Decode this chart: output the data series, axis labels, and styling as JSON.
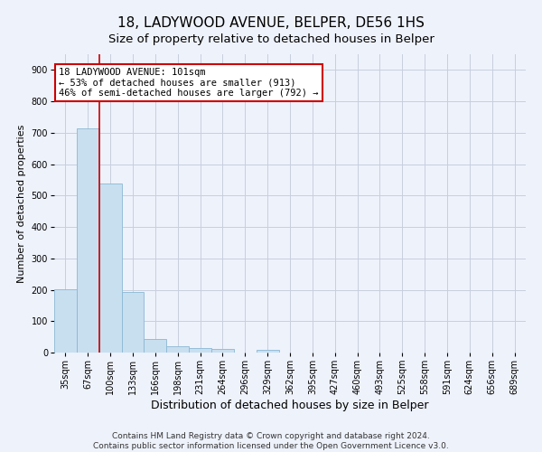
{
  "title": "18, LADYWOOD AVENUE, BELPER, DE56 1HS",
  "subtitle": "Size of property relative to detached houses in Belper",
  "xlabel": "Distribution of detached houses by size in Belper",
  "ylabel": "Number of detached properties",
  "bin_labels": [
    "35sqm",
    "67sqm",
    "100sqm",
    "133sqm",
    "166sqm",
    "198sqm",
    "231sqm",
    "264sqm",
    "296sqm",
    "329sqm",
    "362sqm",
    "395sqm",
    "427sqm",
    "460sqm",
    "493sqm",
    "525sqm",
    "558sqm",
    "591sqm",
    "624sqm",
    "656sqm",
    "689sqm"
  ],
  "bin_values": [
    202,
    714,
    537,
    193,
    42,
    20,
    14,
    12,
    0,
    9,
    0,
    0,
    0,
    0,
    0,
    0,
    0,
    0,
    0,
    0,
    0
  ],
  "bar_color": "#c8dff0",
  "bar_edge_color": "#8ab8d4",
  "vline_x_index": 2,
  "vline_color": "#cc0000",
  "annotation_text": "18 LADYWOOD AVENUE: 101sqm\n← 53% of detached houses are smaller (913)\n46% of semi-detached houses are larger (792) →",
  "annotation_box_color": "#ffffff",
  "annotation_box_edge": "#cc0000",
  "ylim": [
    0,
    950
  ],
  "yticks": [
    0,
    100,
    200,
    300,
    400,
    500,
    600,
    700,
    800,
    900
  ],
  "footer": "Contains HM Land Registry data © Crown copyright and database right 2024.\nContains public sector information licensed under the Open Government Licence v3.0.",
  "background_color": "#eef2fb",
  "grid_color": "#c8cede",
  "title_fontsize": 11,
  "subtitle_fontsize": 9.5,
  "axis_label_fontsize": 8,
  "tick_fontsize": 7,
  "annotation_fontsize": 7.5,
  "footer_fontsize": 6.5
}
